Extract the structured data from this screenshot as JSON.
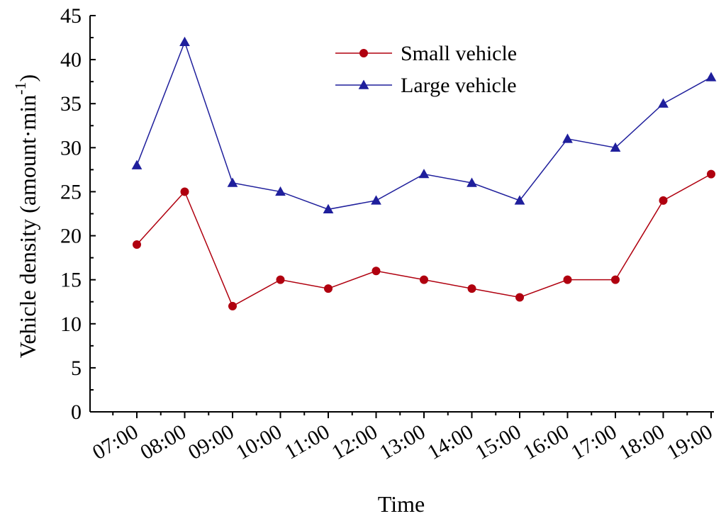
{
  "chart_data": {
    "type": "line",
    "title": "",
    "xlabel": "Time",
    "ylabel": "Vehicle density (amount·min",
    "ylabel_sup": "-1",
    "ylabel_close": ")",
    "categories": [
      "07:00",
      "08:00",
      "09:00",
      "10:00",
      "11:00",
      "12:00",
      "13:00",
      "14:00",
      "15:00",
      "16:00",
      "17:00",
      "18:00",
      "19:00"
    ],
    "ylim": [
      0,
      45
    ],
    "yticks": [
      "0",
      "5",
      "10",
      "15",
      "20",
      "25",
      "30",
      "35",
      "40",
      "45"
    ],
    "grid": false,
    "legend_position": "top-center",
    "series": [
      {
        "name": "Small vehicle",
        "color": "#b0000f",
        "marker": "circle",
        "values": [
          19,
          25,
          12,
          15,
          14,
          16,
          15,
          14,
          13,
          15,
          15,
          24,
          27
        ]
      },
      {
        "name": "Large vehicle",
        "color": "#1f1f9c",
        "marker": "triangle",
        "values": [
          28,
          42,
          26,
          25,
          23,
          24,
          27,
          26,
          24,
          31,
          30,
          35,
          38
        ]
      }
    ]
  }
}
